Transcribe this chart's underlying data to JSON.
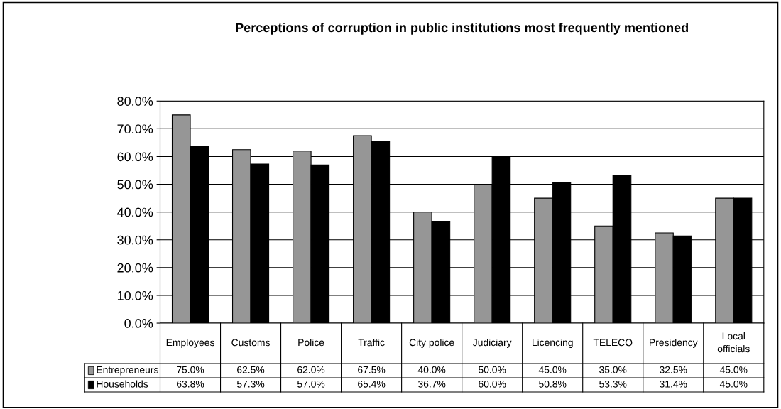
{
  "chart_data": {
    "type": "bar",
    "title": "Perceptions of corruption in public institutions most frequently mentioned",
    "categories": [
      "Employees",
      "Customs",
      "Police",
      "Traffic",
      "City police",
      "Judiciary",
      "Licencing",
      "TELECO",
      "Presidency",
      "Local officials"
    ],
    "series": [
      {
        "name": "Entrepreneurs",
        "color": "#969696",
        "values": [
          75.0,
          62.5,
          62.0,
          67.5,
          40.0,
          50.0,
          45.0,
          35.0,
          32.5,
          45.0
        ],
        "value_labels": [
          "75.0%",
          "62.5%",
          "62.0%",
          "67.5%",
          "40.0%",
          "50.0%",
          "45.0%",
          "35.0%",
          "32.5%",
          "45.0%"
        ]
      },
      {
        "name": "Households",
        "color": "#000000",
        "values": [
          63.8,
          57.3,
          57.0,
          65.4,
          36.7,
          60.0,
          50.8,
          53.3,
          31.4,
          45.0
        ],
        "value_labels": [
          "63.8%",
          "57.3%",
          "57.0%",
          "65.4%",
          "36.7%",
          "60.0%",
          "50.8%",
          "53.3%",
          "31.4%",
          "45.0%"
        ]
      }
    ],
    "ylim": [
      0,
      80
    ],
    "yticks": [
      {
        "value": 0,
        "label": "0.0%"
      },
      {
        "value": 10,
        "label": "10.0%"
      },
      {
        "value": 20,
        "label": "20.0%"
      },
      {
        "value": 30,
        "label": "30.0%"
      },
      {
        "value": 40,
        "label": "40.0%"
      },
      {
        "value": 50,
        "label": "50.0%"
      },
      {
        "value": 60,
        "label": "60.0%"
      },
      {
        "value": 70,
        "label": "70.0%"
      },
      {
        "value": 80,
        "label": "80.0%"
      }
    ],
    "grid": "y",
    "legend": "bottom left"
  }
}
